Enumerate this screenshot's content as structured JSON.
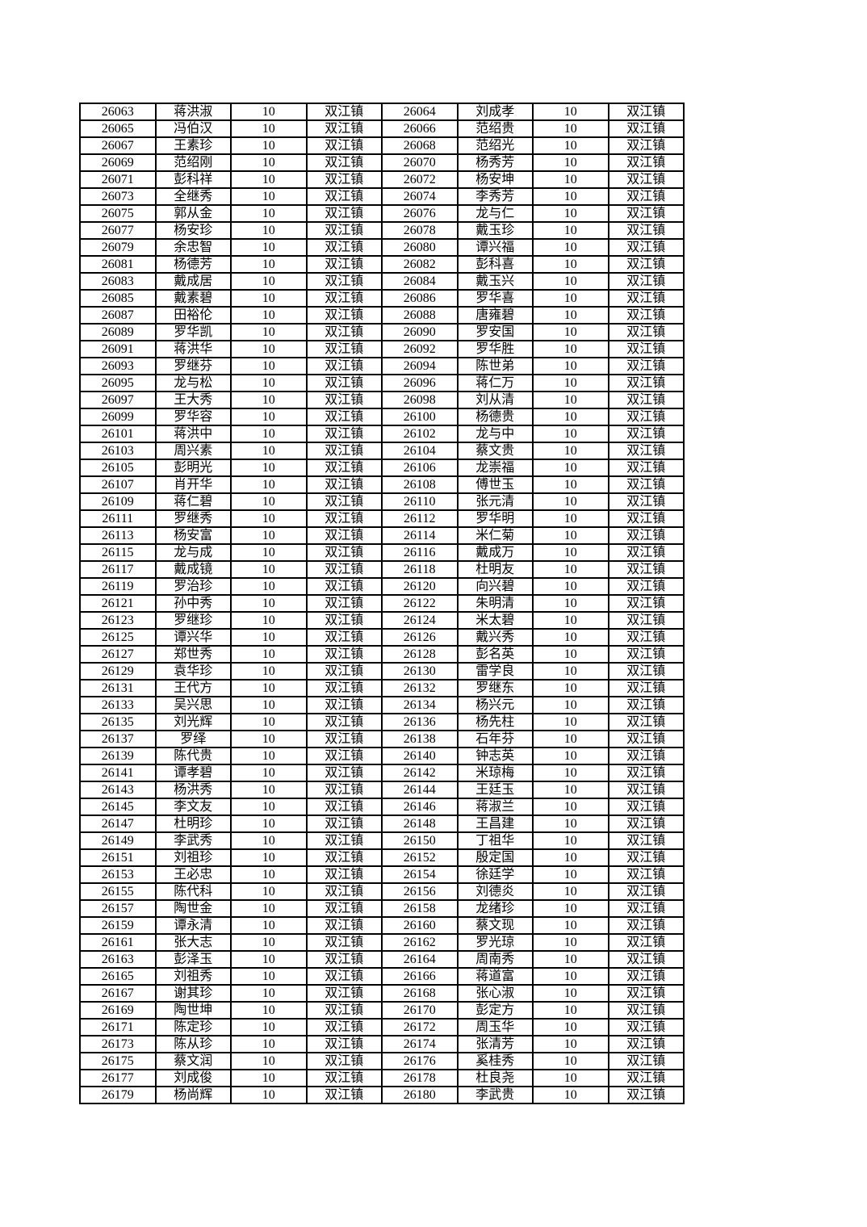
{
  "page": {
    "background": "#ffffff",
    "text_color": "#000000",
    "border_color": "#000000"
  },
  "table": {
    "cell_names": [
      "serial-number",
      "person-name",
      "amount",
      "town",
      "serial-number",
      "person-name",
      "amount",
      "town"
    ],
    "rows": [
      [
        "26063",
        "蒋洪淑",
        "10",
        "双江镇",
        "26064",
        "刘成孝",
        "10",
        "双江镇"
      ],
      [
        "26065",
        "冯伯汉",
        "10",
        "双江镇",
        "26066",
        "范绍贵",
        "10",
        "双江镇"
      ],
      [
        "26067",
        "王素珍",
        "10",
        "双江镇",
        "26068",
        "范绍光",
        "10",
        "双江镇"
      ],
      [
        "26069",
        "范绍刚",
        "10",
        "双江镇",
        "26070",
        "杨秀芳",
        "10",
        "双江镇"
      ],
      [
        "26071",
        "彭科祥",
        "10",
        "双江镇",
        "26072",
        "杨安坤",
        "10",
        "双江镇"
      ],
      [
        "26073",
        "全继秀",
        "10",
        "双江镇",
        "26074",
        "李秀芳",
        "10",
        "双江镇"
      ],
      [
        "26075",
        "郭从金",
        "10",
        "双江镇",
        "26076",
        "龙与仁",
        "10",
        "双江镇"
      ],
      [
        "26077",
        "杨安珍",
        "10",
        "双江镇",
        "26078",
        "戴玉珍",
        "10",
        "双江镇"
      ],
      [
        "26079",
        "余忠智",
        "10",
        "双江镇",
        "26080",
        "谭兴福",
        "10",
        "双江镇"
      ],
      [
        "26081",
        "杨德芳",
        "10",
        "双江镇",
        "26082",
        "彭科喜",
        "10",
        "双江镇"
      ],
      [
        "26083",
        "戴成居",
        "10",
        "双江镇",
        "26084",
        "戴玉兴",
        "10",
        "双江镇"
      ],
      [
        "26085",
        "戴素碧",
        "10",
        "双江镇",
        "26086",
        "罗华喜",
        "10",
        "双江镇"
      ],
      [
        "26087",
        "田裕伦",
        "10",
        "双江镇",
        "26088",
        "唐雍碧",
        "10",
        "双江镇"
      ],
      [
        "26089",
        "罗华凯",
        "10",
        "双江镇",
        "26090",
        "罗安国",
        "10",
        "双江镇"
      ],
      [
        "26091",
        "蒋洪华",
        "10",
        "双江镇",
        "26092",
        "罗华胜",
        "10",
        "双江镇"
      ],
      [
        "26093",
        "罗继芬",
        "10",
        "双江镇",
        "26094",
        "陈世弟",
        "10",
        "双江镇"
      ],
      [
        "26095",
        "龙与松",
        "10",
        "双江镇",
        "26096",
        "蒋仁万",
        "10",
        "双江镇"
      ],
      [
        "26097",
        "王大秀",
        "10",
        "双江镇",
        "26098",
        "刘从清",
        "10",
        "双江镇"
      ],
      [
        "26099",
        "罗华容",
        "10",
        "双江镇",
        "26100",
        "杨德贵",
        "10",
        "双江镇"
      ],
      [
        "26101",
        "蒋洪中",
        "10",
        "双江镇",
        "26102",
        "龙与中",
        "10",
        "双江镇"
      ],
      [
        "26103",
        "周兴素",
        "10",
        "双江镇",
        "26104",
        "蔡文贵",
        "10",
        "双江镇"
      ],
      [
        "26105",
        "彭明光",
        "10",
        "双江镇",
        "26106",
        "龙崇福",
        "10",
        "双江镇"
      ],
      [
        "26107",
        "肖开华",
        "10",
        "双江镇",
        "26108",
        "傅世玉",
        "10",
        "双江镇"
      ],
      [
        "26109",
        "蒋仁碧",
        "10",
        "双江镇",
        "26110",
        "张元清",
        "10",
        "双江镇"
      ],
      [
        "26111",
        "罗继秀",
        "10",
        "双江镇",
        "26112",
        "罗华明",
        "10",
        "双江镇"
      ],
      [
        "26113",
        "杨安富",
        "10",
        "双江镇",
        "26114",
        "米仁菊",
        "10",
        "双江镇"
      ],
      [
        "26115",
        "龙与成",
        "10",
        "双江镇",
        "26116",
        "戴成万",
        "10",
        "双江镇"
      ],
      [
        "26117",
        "戴成镜",
        "10",
        "双江镇",
        "26118",
        "杜明友",
        "10",
        "双江镇"
      ],
      [
        "26119",
        "罗治珍",
        "10",
        "双江镇",
        "26120",
        "向兴碧",
        "10",
        "双江镇"
      ],
      [
        "26121",
        "孙中秀",
        "10",
        "双江镇",
        "26122",
        "朱明清",
        "10",
        "双江镇"
      ],
      [
        "26123",
        "罗继珍",
        "10",
        "双江镇",
        "26124",
        "米太碧",
        "10",
        "双江镇"
      ],
      [
        "26125",
        "谭兴华",
        "10",
        "双江镇",
        "26126",
        "戴兴秀",
        "10",
        "双江镇"
      ],
      [
        "26127",
        "郑世秀",
        "10",
        "双江镇",
        "26128",
        "彭名英",
        "10",
        "双江镇"
      ],
      [
        "26129",
        "袁华珍",
        "10",
        "双江镇",
        "26130",
        "雷学良",
        "10",
        "双江镇"
      ],
      [
        "26131",
        "王代方",
        "10",
        "双江镇",
        "26132",
        "罗继东",
        "10",
        "双江镇"
      ],
      [
        "26133",
        "吴兴思",
        "10",
        "双江镇",
        "26134",
        "杨兴元",
        "10",
        "双江镇"
      ],
      [
        "26135",
        "刘光辉",
        "10",
        "双江镇",
        "26136",
        "杨先柱",
        "10",
        "双江镇"
      ],
      [
        "26137",
        "罗绎",
        "10",
        "双江镇",
        "26138",
        "石年芬",
        "10",
        "双江镇"
      ],
      [
        "26139",
        "陈代贵",
        "10",
        "双江镇",
        "26140",
        "钟志英",
        "10",
        "双江镇"
      ],
      [
        "26141",
        "谭孝碧",
        "10",
        "双江镇",
        "26142",
        "米琼梅",
        "10",
        "双江镇"
      ],
      [
        "26143",
        "杨洪秀",
        "10",
        "双江镇",
        "26144",
        "王廷玉",
        "10",
        "双江镇"
      ],
      [
        "26145",
        "李文友",
        "10",
        "双江镇",
        "26146",
        "蒋淑兰",
        "10",
        "双江镇"
      ],
      [
        "26147",
        "杜明珍",
        "10",
        "双江镇",
        "26148",
        "王昌建",
        "10",
        "双江镇"
      ],
      [
        "26149",
        "李武秀",
        "10",
        "双江镇",
        "26150",
        "丁祖华",
        "10",
        "双江镇"
      ],
      [
        "26151",
        "刘祖珍",
        "10",
        "双江镇",
        "26152",
        "殷定国",
        "10",
        "双江镇"
      ],
      [
        "26153",
        "王必忠",
        "10",
        "双江镇",
        "26154",
        "徐廷学",
        "10",
        "双江镇"
      ],
      [
        "26155",
        "陈代科",
        "10",
        "双江镇",
        "26156",
        "刘德炎",
        "10",
        "双江镇"
      ],
      [
        "26157",
        "陶世金",
        "10",
        "双江镇",
        "26158",
        "龙绪珍",
        "10",
        "双江镇"
      ],
      [
        "26159",
        "谭永清",
        "10",
        "双江镇",
        "26160",
        "蔡文现",
        "10",
        "双江镇"
      ],
      [
        "26161",
        "张大志",
        "10",
        "双江镇",
        "26162",
        "罗光琼",
        "10",
        "双江镇"
      ],
      [
        "26163",
        "彭泽玉",
        "10",
        "双江镇",
        "26164",
        "周南秀",
        "10",
        "双江镇"
      ],
      [
        "26165",
        "刘祖秀",
        "10",
        "双江镇",
        "26166",
        "蒋道富",
        "10",
        "双江镇"
      ],
      [
        "26167",
        "谢其珍",
        "10",
        "双江镇",
        "26168",
        "张心淑",
        "10",
        "双江镇"
      ],
      [
        "26169",
        "陶世坤",
        "10",
        "双江镇",
        "26170",
        "彭定方",
        "10",
        "双江镇"
      ],
      [
        "26171",
        "陈定珍",
        "10",
        "双江镇",
        "26172",
        "周玉华",
        "10",
        "双江镇"
      ],
      [
        "26173",
        "陈从珍",
        "10",
        "双江镇",
        "26174",
        "张清芳",
        "10",
        "双江镇"
      ],
      [
        "26175",
        "蔡文润",
        "10",
        "双江镇",
        "26176",
        "奚桂秀",
        "10",
        "双江镇"
      ],
      [
        "26177",
        "刘成俊",
        "10",
        "双江镇",
        "26178",
        "杜良尧",
        "10",
        "双江镇"
      ],
      [
        "26179",
        "杨尚辉",
        "10",
        "双江镇",
        "26180",
        "李武贵",
        "10",
        "双江镇"
      ]
    ]
  }
}
